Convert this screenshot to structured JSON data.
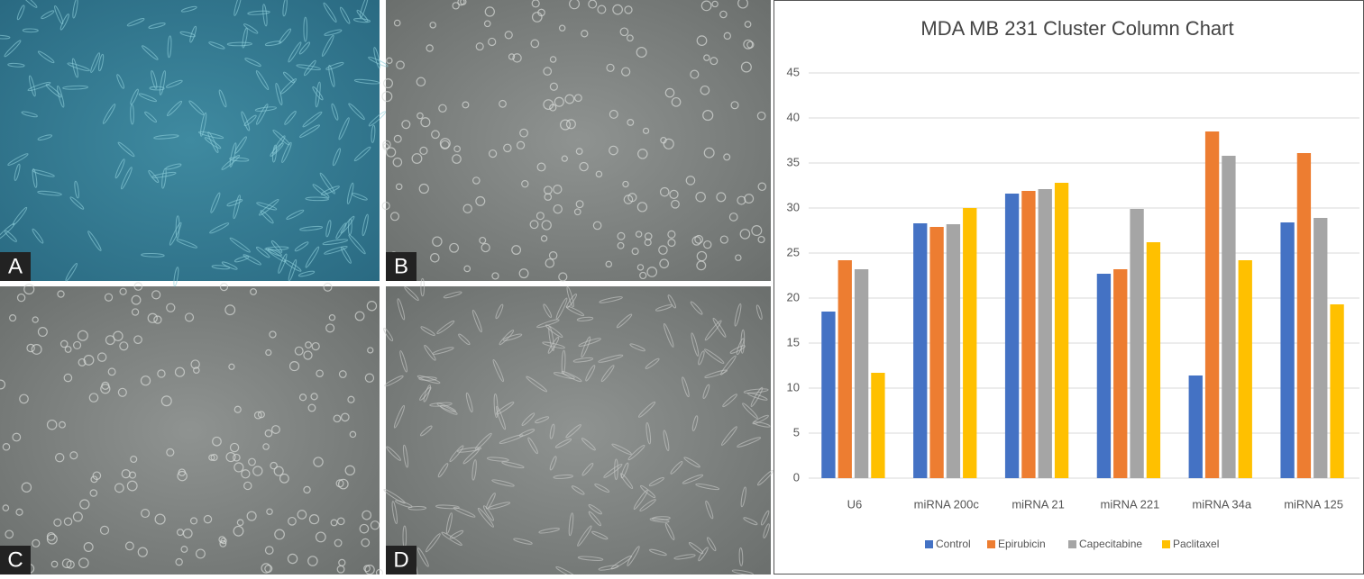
{
  "panels": [
    {
      "label": "A"
    },
    {
      "label": "B"
    },
    {
      "label": "C"
    },
    {
      "label": "D"
    }
  ],
  "chart_data": {
    "type": "bar",
    "title": "MDA MB 231 Cluster Column Chart",
    "categories": [
      "U6",
      "miRNA 200c",
      "miRNA 21",
      "miRNA 221",
      "miRNA 34a",
      "miRNA 125"
    ],
    "series": [
      {
        "name": "Control",
        "color": "#4472c4",
        "values": [
          18.5,
          28.3,
          31.6,
          22.7,
          11.4,
          28.4
        ]
      },
      {
        "name": "Epirubicin",
        "color": "#ed7d31",
        "values": [
          24.2,
          27.9,
          31.9,
          23.2,
          38.5,
          36.1
        ]
      },
      {
        "name": "Capecitabine",
        "color": "#a5a5a5",
        "values": [
          23.2,
          28.2,
          32.1,
          29.9,
          35.8,
          28.9
        ]
      },
      {
        "name": "Paclitaxel",
        "color": "#ffc000",
        "values": [
          11.7,
          30.0,
          32.8,
          26.2,
          24.2,
          19.3
        ]
      }
    ],
    "ylim": [
      0,
      45
    ],
    "yticks": [
      0,
      5,
      10,
      15,
      20,
      25,
      30,
      35,
      40,
      45
    ],
    "grid": true,
    "legend": "bottom"
  }
}
